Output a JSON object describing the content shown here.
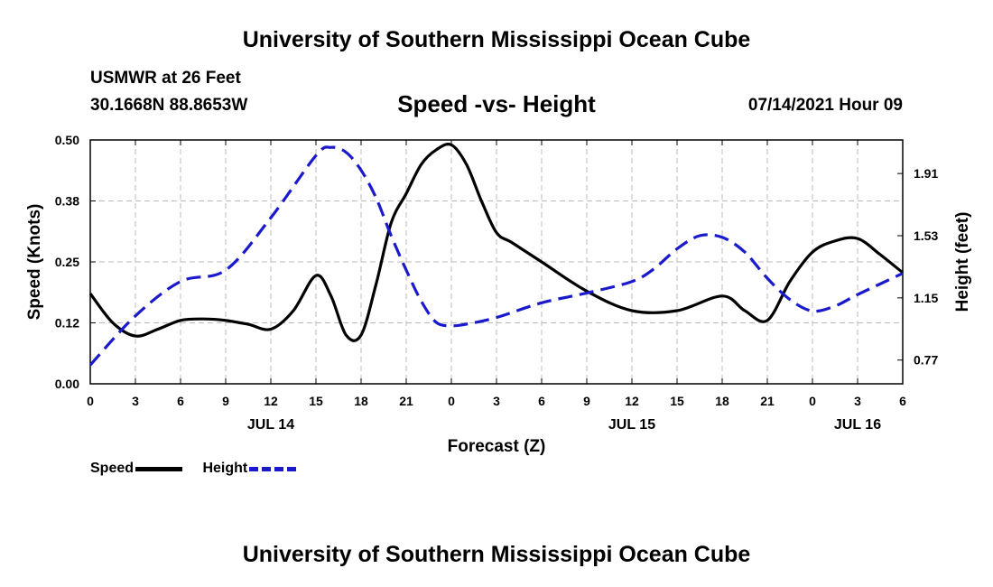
{
  "header": {
    "title_top": "University of Southern Mississippi Ocean Cube",
    "station": "USMWR at 26 Feet",
    "coords": "30.1668N  88.8653W",
    "chart_title": "Speed -vs- Height",
    "datetime": "07/14/2021 Hour 09"
  },
  "footer": {
    "title_bottom": "University of Southern Mississippi Ocean Cube"
  },
  "legend": {
    "speed_label": "Speed",
    "height_label": "Height"
  },
  "colors": {
    "speed": "#000000",
    "height": "#1a1acc",
    "grid": "#bbbbbb"
  },
  "chart_data": {
    "type": "line",
    "title": "Speed -vs- Height",
    "xlabel": "Forecast (Z)",
    "ylabel": "Speed (Knots)",
    "y2label": "Height (feet)",
    "x_unit": "hours from 00Z Jul 14",
    "xlim": [
      0,
      54
    ],
    "ylim": [
      0,
      0.5
    ],
    "y2lim": [
      0.625,
      2.115
    ],
    "x_ticks": [
      0,
      3,
      6,
      9,
      12,
      15,
      18,
      21,
      24,
      27,
      30,
      33,
      36,
      39,
      42,
      45,
      48,
      51,
      54
    ],
    "x_tick_labels": [
      "0",
      "3",
      "6",
      "9",
      "12",
      "15",
      "18",
      "21",
      "0",
      "3",
      "6",
      "9",
      "12",
      "15",
      "18",
      "21",
      "0",
      "3",
      "6"
    ],
    "date_labels": [
      {
        "x": 12,
        "label": "JUL 14"
      },
      {
        "x": 36,
        "label": "JUL 15"
      },
      {
        "x": 51,
        "label": "JUL 16"
      }
    ],
    "y_ticks": [
      0.0,
      0.125,
      0.25,
      0.375,
      0.5
    ],
    "y_tick_labels": [
      "0.00",
      "0.12",
      "0.25",
      "0.38",
      "0.50"
    ],
    "y2_ticks": [
      0.77,
      1.15,
      1.53,
      1.91
    ],
    "y2_tick_labels": [
      "0.77",
      "1.15",
      "1.53",
      "1.91"
    ],
    "series": [
      {
        "name": "Speed",
        "axis": "left",
        "style": "solid",
        "x": [
          0,
          1.5,
          3,
          4.5,
          6,
          7.5,
          9,
          10.5,
          12,
          13.5,
          15,
          16,
          17,
          18,
          19,
          20,
          21,
          22,
          23,
          24,
          25,
          26,
          27,
          28,
          30,
          33,
          36,
          39,
          42,
          43.5,
          45,
          46.5,
          48,
          49.5,
          51,
          52.5,
          54
        ],
        "values": [
          0.185,
          0.125,
          0.098,
          0.112,
          0.13,
          0.133,
          0.13,
          0.122,
          0.112,
          0.15,
          0.222,
          0.18,
          0.1,
          0.1,
          0.205,
          0.33,
          0.39,
          0.45,
          0.48,
          0.49,
          0.45,
          0.375,
          0.31,
          0.29,
          0.25,
          0.19,
          0.15,
          0.15,
          0.18,
          0.15,
          0.13,
          0.21,
          0.27,
          0.293,
          0.298,
          0.265,
          0.228
        ]
      },
      {
        "name": "Height",
        "axis": "right",
        "style": "dashed",
        "x": [
          0,
          3,
          6,
          9,
          12,
          15,
          16,
          17,
          18,
          19,
          20,
          21,
          22,
          23,
          24,
          25,
          27,
          30,
          33,
          36,
          37.5,
          39,
          40.5,
          42,
          43.5,
          45,
          46.5,
          48,
          49.5,
          51,
          54
        ],
        "values": [
          0.74,
          1.04,
          1.25,
          1.32,
          1.64,
          2.02,
          2.07,
          2.04,
          1.93,
          1.76,
          1.53,
          1.32,
          1.13,
          1.0,
          0.98,
          0.99,
          1.03,
          1.12,
          1.18,
          1.25,
          1.33,
          1.45,
          1.53,
          1.52,
          1.43,
          1.27,
          1.14,
          1.07,
          1.1,
          1.17,
          1.3
        ]
      }
    ]
  }
}
